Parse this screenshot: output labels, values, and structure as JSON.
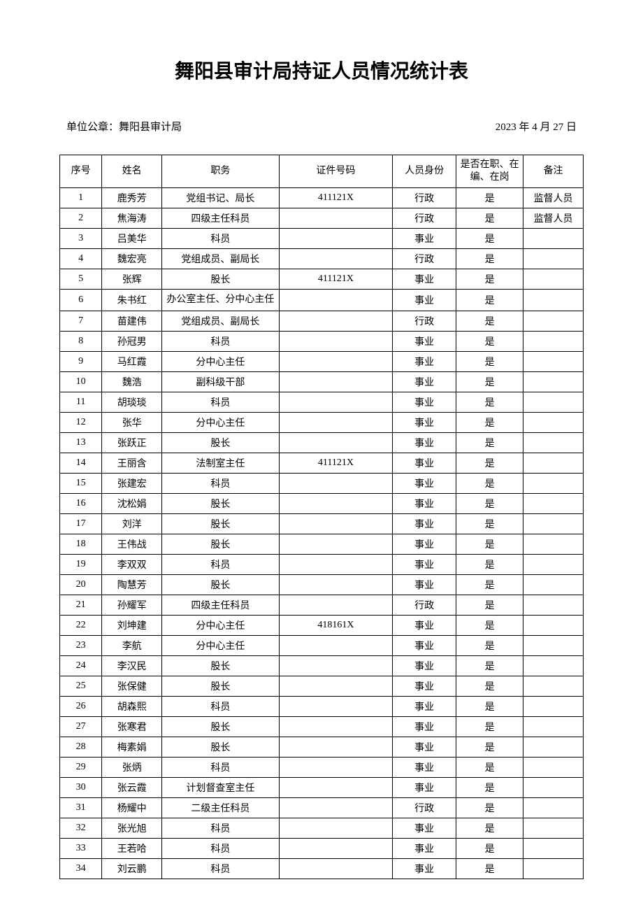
{
  "document": {
    "title": "舞阳县审计局持证人员情况统计表",
    "stamp": "单位公章：舞阳县审计局",
    "date": "2023 年 4 月 27 日"
  },
  "table": {
    "columns": {
      "seq": "序号",
      "name": "姓名",
      "position": "职务",
      "cert": "证件号码",
      "identity": "人员身份",
      "status": "是否在职、在编、在岗",
      "remark": "备注"
    },
    "rows": [
      {
        "seq": "1",
        "name": "鹿秀芳",
        "position": "党组书记、局长",
        "cert": "411121X",
        "identity": "行政",
        "status": "是",
        "remark": "监督人员"
      },
      {
        "seq": "2",
        "name": "焦海涛",
        "position": "四级主任科员",
        "cert": "",
        "identity": "行政",
        "status": "是",
        "remark": "监督人员"
      },
      {
        "seq": "3",
        "name": "吕美华",
        "position": "科员",
        "cert": "",
        "identity": "事业",
        "status": "是",
        "remark": ""
      },
      {
        "seq": "4",
        "name": "魏宏亮",
        "position": "党组成员、副局长",
        "cert": "",
        "identity": "行政",
        "status": "是",
        "remark": ""
      },
      {
        "seq": "5",
        "name": "张辉",
        "position": "股长",
        "cert": "411121X",
        "identity": "事业",
        "status": "是",
        "remark": ""
      },
      {
        "seq": "6",
        "name": "朱书红",
        "position": "办公室主任、分中心主任",
        "cert": "",
        "identity": "事业",
        "status": "是",
        "remark": ""
      },
      {
        "seq": "7",
        "name": "苗建伟",
        "position": "党组成员、副局长",
        "cert": "",
        "identity": "行政",
        "status": "是",
        "remark": ""
      },
      {
        "seq": "8",
        "name": "孙冠男",
        "position": "科员",
        "cert": "",
        "identity": "事业",
        "status": "是",
        "remark": ""
      },
      {
        "seq": "9",
        "name": "马红霞",
        "position": "分中心主任",
        "cert": "",
        "identity": "事业",
        "status": "是",
        "remark": ""
      },
      {
        "seq": "10",
        "name": "魏浩",
        "position": "副科级干部",
        "cert": "",
        "identity": "事业",
        "status": "是",
        "remark": ""
      },
      {
        "seq": "11",
        "name": "胡琰琰",
        "position": "科员",
        "cert": "",
        "identity": "事业",
        "status": "是",
        "remark": ""
      },
      {
        "seq": "12",
        "name": "张华",
        "position": "分中心主任",
        "cert": "",
        "identity": "事业",
        "status": "是",
        "remark": ""
      },
      {
        "seq": "13",
        "name": "张跃正",
        "position": "股长",
        "cert": "",
        "identity": "事业",
        "status": "是",
        "remark": ""
      },
      {
        "seq": "14",
        "name": "王丽含",
        "position": "法制室主任",
        "cert": "411121X",
        "identity": "事业",
        "status": "是",
        "remark": ""
      },
      {
        "seq": "15",
        "name": "张建宏",
        "position": "科员",
        "cert": "",
        "identity": "事业",
        "status": "是",
        "remark": ""
      },
      {
        "seq": "16",
        "name": "沈松娟",
        "position": "股长",
        "cert": "",
        "identity": "事业",
        "status": "是",
        "remark": ""
      },
      {
        "seq": "17",
        "name": "刘洋",
        "position": "股长",
        "cert": "",
        "identity": "事业",
        "status": "是",
        "remark": ""
      },
      {
        "seq": "18",
        "name": "王伟战",
        "position": "股长",
        "cert": "",
        "identity": "事业",
        "status": "是",
        "remark": ""
      },
      {
        "seq": "19",
        "name": "李双双",
        "position": "科员",
        "cert": "",
        "identity": "事业",
        "status": "是",
        "remark": ""
      },
      {
        "seq": "20",
        "name": "陶慧芳",
        "position": "股长",
        "cert": "",
        "identity": "事业",
        "status": "是",
        "remark": ""
      },
      {
        "seq": "21",
        "name": "孙耀军",
        "position": "四级主任科员",
        "cert": "",
        "identity": "行政",
        "status": "是",
        "remark": ""
      },
      {
        "seq": "22",
        "name": "刘坤建",
        "position": "分中心主任",
        "cert": "418161X",
        "identity": "事业",
        "status": "是",
        "remark": ""
      },
      {
        "seq": "23",
        "name": "李航",
        "position": "分中心主任",
        "cert": "",
        "identity": "事业",
        "status": "是",
        "remark": ""
      },
      {
        "seq": "24",
        "name": "李汉民",
        "position": "股长",
        "cert": "",
        "identity": "事业",
        "status": "是",
        "remark": ""
      },
      {
        "seq": "25",
        "name": "张保健",
        "position": "股长",
        "cert": "",
        "identity": "事业",
        "status": "是",
        "remark": ""
      },
      {
        "seq": "26",
        "name": "胡森熙",
        "position": "科员",
        "cert": "",
        "identity": "事业",
        "status": "是",
        "remark": ""
      },
      {
        "seq": "27",
        "name": "张寒君",
        "position": "股长",
        "cert": "",
        "identity": "事业",
        "status": "是",
        "remark": ""
      },
      {
        "seq": "28",
        "name": "梅素娟",
        "position": "股长",
        "cert": "",
        "identity": "事业",
        "status": "是",
        "remark": ""
      },
      {
        "seq": "29",
        "name": "张炳",
        "position": "科员",
        "cert": "",
        "identity": "事业",
        "status": "是",
        "remark": ""
      },
      {
        "seq": "30",
        "name": "张云霞",
        "position": "计划督查室主任",
        "cert": "",
        "identity": "事业",
        "status": "是",
        "remark": ""
      },
      {
        "seq": "31",
        "name": "杨耀中",
        "position": "二级主任科员",
        "cert": "",
        "identity": "行政",
        "status": "是",
        "remark": ""
      },
      {
        "seq": "32",
        "name": "张光旭",
        "position": "科员",
        "cert": "",
        "identity": "事业",
        "status": "是",
        "remark": ""
      },
      {
        "seq": "33",
        "name": "王若哈",
        "position": "科员",
        "cert": "",
        "identity": "事业",
        "status": "是",
        "remark": ""
      },
      {
        "seq": "34",
        "name": "刘云鹏",
        "position": "科员",
        "cert": "",
        "identity": "事业",
        "status": "是",
        "remark": ""
      }
    ]
  }
}
